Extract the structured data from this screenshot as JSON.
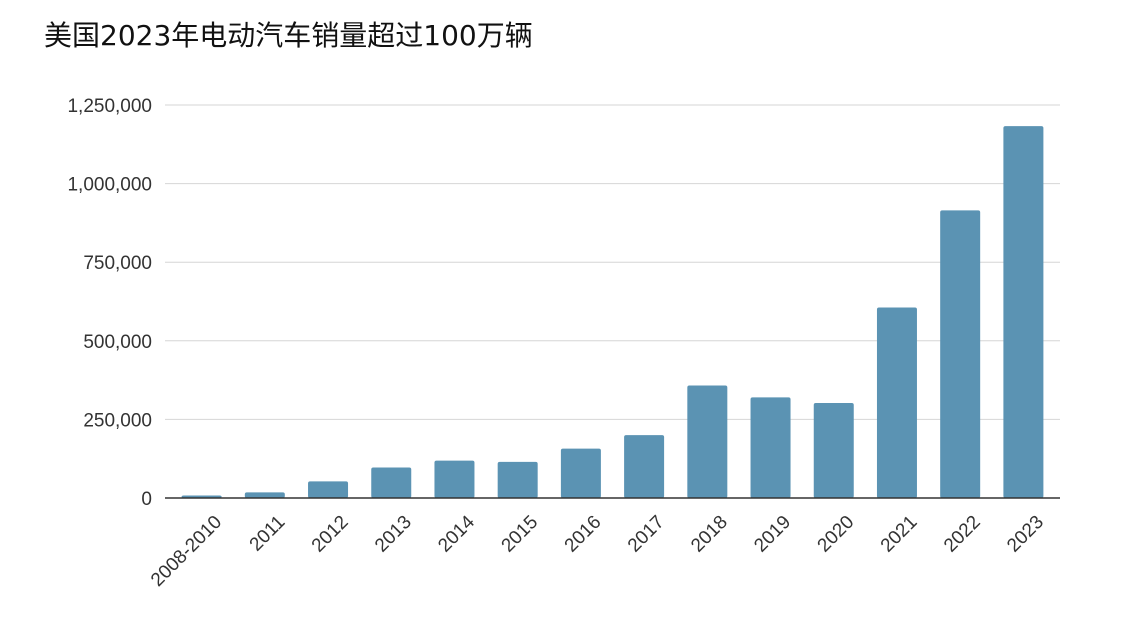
{
  "chart_data": {
    "type": "bar",
    "title": "美国2023年电动汽车销量超过100万辆",
    "xlabel": "",
    "ylabel": "",
    "categories": [
      "2008-2010",
      "2011",
      "2012",
      "2013",
      "2014",
      "2015",
      "2016",
      "2017",
      "2018",
      "2019",
      "2020",
      "2021",
      "2022",
      "2023"
    ],
    "values": [
      8000,
      18000,
      53000,
      97000,
      119000,
      115000,
      157000,
      200000,
      358000,
      320000,
      302000,
      606000,
      915000,
      1183000
    ],
    "ylim": [
      0,
      1250000
    ],
    "yticks": [
      0,
      250000,
      500000,
      750000,
      1000000,
      1250000
    ],
    "ytick_labels": [
      "0",
      "250,000",
      "500,000",
      "750,000",
      "1,000,000",
      "1,250,000"
    ],
    "bar_color": "#5b93b3",
    "grid": true,
    "legend": "none"
  }
}
